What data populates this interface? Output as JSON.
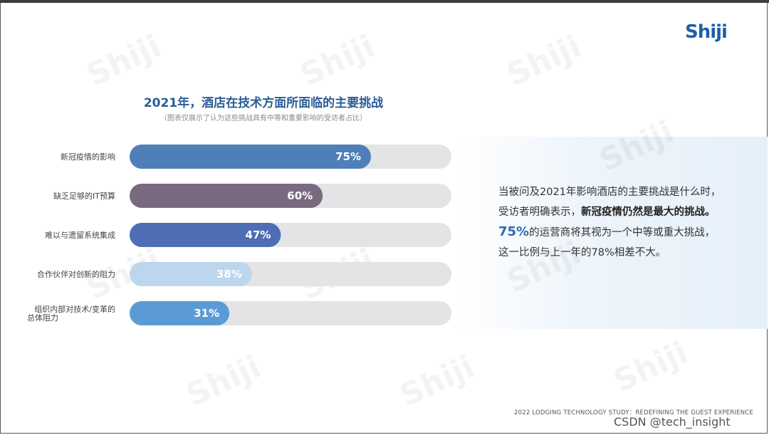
{
  "brand": {
    "logo": "Shiji",
    "watermark": "Shiji"
  },
  "title": "2021年，酒店在技术方面所面临的主要挑战",
  "subtitle": "（图表仅展示了认为这些挑战具有中等和重要影响的受访者占比）",
  "chart_data": {
    "type": "bar",
    "orientation": "horizontal",
    "title": "2021年，酒店在技术方面所面临的主要挑战",
    "subtitle": "（图表仅展示了认为这些挑战具有中等和重要影响的受访者占比）",
    "xlim": [
      0,
      100
    ],
    "categories": [
      "新冠疫情的影响",
      "缺乏足够的IT预算",
      "难以与遗留系统集成",
      "合作伙伴对创新的阻力",
      "组织内部对技术/变革的总体阻力"
    ],
    "category_lines": [
      [
        "新冠疫情的影响"
      ],
      [
        "缺乏足够的IT预算"
      ],
      [
        "难以与遗留系统集成"
      ],
      [
        "合作伙伴对创新的阻力"
      ],
      [
        "组织内部对技术/变革的",
        "总体阻力"
      ]
    ],
    "values": [
      75,
      60,
      47,
      38,
      31
    ],
    "value_labels": [
      "75%",
      "60%",
      "47%",
      "38%",
      "31%"
    ],
    "colors": [
      "#4f7fb8",
      "#7b6a7f",
      "#4e6db5",
      "#bcd6ee",
      "#5b9bd5"
    ],
    "track_color": "#e4e4e6",
    "grid": false
  },
  "description": {
    "line1": "当被问及2021年影响酒店的主要挑战是什么时，",
    "line2a": "受访者明确表示，",
    "line2b": "新冠疫情仍然是最大的挑战。",
    "line3a": "75%",
    "line3b": "的运营商将其视为一个中等或重大挑战，",
    "line4": "这一比例与上一年的78%相差不大。"
  },
  "footer": "2022 LODGING TECHNOLOGY STUDY：REDEFINING THE GUEST EXPERIENCE",
  "csdn": "CSDN @tech_insight"
}
